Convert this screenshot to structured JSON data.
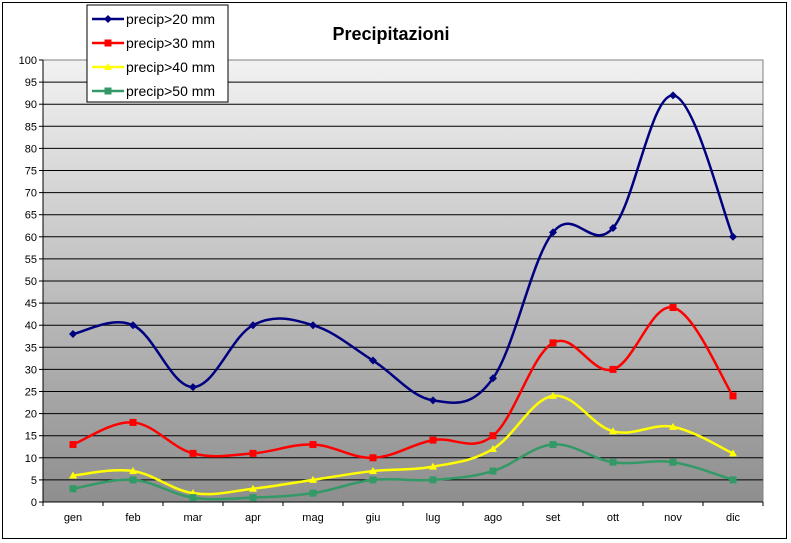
{
  "chart_data": {
    "type": "line",
    "title": "Precipitazioni",
    "xlabel": "",
    "ylabel": "",
    "categories": [
      "gen",
      "feb",
      "mar",
      "apr",
      "mag",
      "giu",
      "lug",
      "ago",
      "set",
      "ott",
      "nov",
      "dic"
    ],
    "ylim": [
      0,
      100
    ],
    "yticks": [
      0,
      5,
      10,
      15,
      20,
      25,
      30,
      35,
      40,
      45,
      50,
      55,
      60,
      65,
      70,
      75,
      80,
      85,
      90,
      95,
      100
    ],
    "grid": true,
    "smooth": true,
    "legend_position": "top-left",
    "background": "gradient gray",
    "series": [
      {
        "name": "precip>20 mm",
        "color": "#000080",
        "marker": "diamond",
        "values": [
          38,
          40,
          26,
          40,
          40,
          32,
          23,
          28,
          61,
          62,
          92,
          60
        ]
      },
      {
        "name": "precip>30 mm",
        "color": "#ff0000",
        "marker": "square",
        "values": [
          13,
          18,
          11,
          11,
          13,
          10,
          14,
          15,
          36,
          30,
          44,
          24
        ]
      },
      {
        "name": "precip>40 mm",
        "color": "#ffff00",
        "marker": "triangle",
        "values": [
          6,
          7,
          2,
          3,
          5,
          7,
          8,
          12,
          24,
          16,
          17,
          11
        ]
      },
      {
        "name": "precip>50 mm",
        "color": "#339966",
        "marker": "square",
        "values": [
          3,
          5,
          1,
          1,
          2,
          5,
          5,
          7,
          13,
          9,
          9,
          5
        ]
      }
    ]
  }
}
